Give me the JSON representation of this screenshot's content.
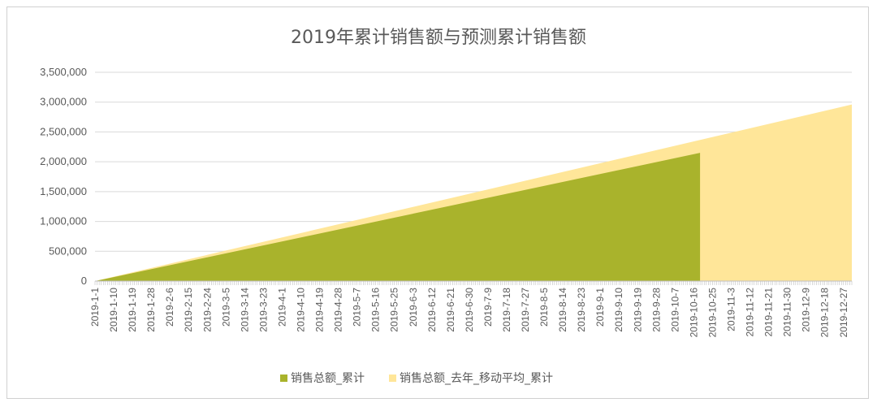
{
  "chart_data": {
    "type": "area",
    "title": "2019年累计销售额与预测累计销售额",
    "xlabel": "",
    "ylabel": "",
    "ylim": [
      0,
      3500000
    ],
    "yticks": [
      "0",
      "500,000",
      "1,000,000",
      "1,500,000",
      "2,000,000",
      "2,500,000",
      "3,000,000",
      "3,500,000"
    ],
    "yvalues": [
      0,
      500000,
      1000000,
      1500000,
      2000000,
      2500000,
      3000000,
      3500000
    ],
    "x_labels": [
      "2019-1-1",
      "2019-1-10",
      "2019-1-19",
      "2019-1-28",
      "2019-2-6",
      "2019-2-15",
      "2019-2-24",
      "2019-3-5",
      "2019-3-14",
      "2019-3-23",
      "2019-4-1",
      "2019-4-10",
      "2019-4-19",
      "2019-4-28",
      "2019-5-7",
      "2019-5-16",
      "2019-5-25",
      "2019-6-3",
      "2019-6-12",
      "2019-6-21",
      "2019-6-30",
      "2019-7-9",
      "2019-7-18",
      "2019-7-27",
      "2019-8-5",
      "2019-8-14",
      "2019-8-23",
      "2019-9-1",
      "2019-9-10",
      "2019-9-19",
      "2019-9-28",
      "2019-10-7",
      "2019-10-16",
      "2019-10-25",
      "2019-11-3",
      "2019-11-12",
      "2019-11-21",
      "2019-11-30",
      "2019-12-9",
      "2019-12-18",
      "2019-12-27"
    ],
    "x_start": "2019-1-1",
    "x_end": "2019-12-31",
    "grid": true,
    "legend_position": "bottom",
    "series": [
      {
        "name": "销售总额_去年_移动平均_累计",
        "color": "#ffe699",
        "x": [
          "2019-1-1",
          "2019-12-31"
        ],
        "values": [
          0,
          2960000
        ]
      },
      {
        "name": "销售总额_累计",
        "color": "#a9b32c",
        "x": [
          "2019-1-1",
          "2019-10-19",
          "2019-10-19"
        ],
        "values": [
          0,
          2150000,
          0
        ]
      }
    ]
  },
  "legend": {
    "items": [
      {
        "label": "销售总额_累计",
        "color": "#a9b32c",
        "marker": "square"
      },
      {
        "label": "销售总额_去年_移动平均_累计",
        "color": "#ffe699",
        "marker": "square"
      }
    ]
  }
}
